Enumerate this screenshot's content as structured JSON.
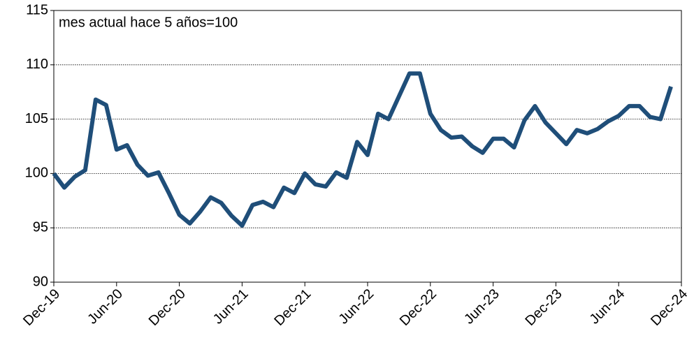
{
  "chart_data": {
    "type": "line",
    "annotation": "mes actual hace 5 años=100",
    "categories": [
      "Dec-19",
      null,
      null,
      null,
      null,
      null,
      "Jun-20",
      null,
      null,
      null,
      null,
      null,
      "Dec-20",
      null,
      null,
      null,
      null,
      null,
      "Jun-21",
      null,
      null,
      null,
      null,
      null,
      "Dec-21",
      null,
      null,
      null,
      null,
      null,
      "Jun-22",
      null,
      null,
      null,
      null,
      null,
      "Dec-22",
      null,
      null,
      null,
      null,
      null,
      "Jun-23",
      null,
      null,
      null,
      null,
      null,
      "Dec-23",
      null,
      null,
      null,
      null,
      null,
      "Jun-24",
      null,
      null,
      null,
      null,
      null,
      "Dec-24"
    ],
    "series": [
      {
        "color": "#1f4e79",
        "values": [
          100,
          98.7,
          99.7,
          100.3,
          106.8,
          106.3,
          102.2,
          102.6,
          100.8,
          99.8,
          100.1,
          98.2,
          96.2,
          95.4,
          96.5,
          97.8,
          97.3,
          96.1,
          95.2,
          97.1,
          97.4,
          96.9,
          98.7,
          98.2,
          100,
          99.0,
          98.8,
          100.1,
          99.6,
          102.9,
          101.7,
          105.5,
          105.0,
          107.1,
          109.2,
          109.2,
          105.5,
          104.0,
          103.3,
          103.4,
          102.5,
          101.9,
          103.2,
          103.2,
          102.4,
          104.9,
          106.2,
          104.7,
          103.7,
          102.7,
          104.0,
          103.7,
          104.1,
          104.8,
          105.3,
          106.2,
          106.2,
          105.2,
          105.0,
          108.0,
          null
        ]
      }
    ],
    "ylim": [
      90,
      115
    ],
    "yticks": [
      90,
      95,
      100,
      105,
      110,
      115
    ],
    "grid": true
  }
}
